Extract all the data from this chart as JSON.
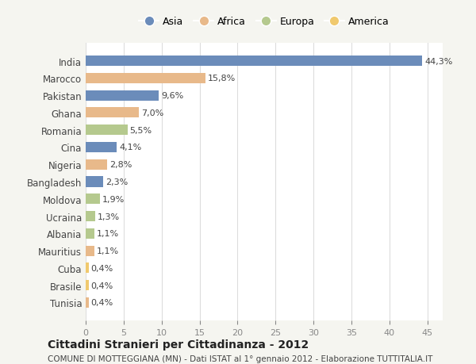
{
  "countries": [
    "India",
    "Marocco",
    "Pakistan",
    "Ghana",
    "Romania",
    "Cina",
    "Nigeria",
    "Bangladesh",
    "Moldova",
    "Ucraina",
    "Albania",
    "Mauritius",
    "Cuba",
    "Brasile",
    "Tunisia"
  ],
  "values": [
    44.3,
    15.8,
    9.6,
    7.0,
    5.5,
    4.1,
    2.8,
    2.3,
    1.9,
    1.3,
    1.1,
    1.1,
    0.4,
    0.4,
    0.4
  ],
  "labels": [
    "44,3%",
    "15,8%",
    "9,6%",
    "7,0%",
    "5,5%",
    "4,1%",
    "2,8%",
    "2,3%",
    "1,9%",
    "1,3%",
    "1,1%",
    "1,1%",
    "0,4%",
    "0,4%",
    "0,4%"
  ],
  "continents": [
    "Asia",
    "Africa",
    "Asia",
    "Africa",
    "Europa",
    "Asia",
    "Africa",
    "Asia",
    "Europa",
    "Europa",
    "Europa",
    "Africa",
    "America",
    "America",
    "Africa"
  ],
  "colors": {
    "Asia": "#6b8cba",
    "Africa": "#e8b98a",
    "Europa": "#b5c98e",
    "America": "#f0c96e"
  },
  "xlim": [
    0,
    47
  ],
  "xticks": [
    0,
    5,
    10,
    15,
    20,
    25,
    30,
    35,
    40,
    45
  ],
  "title": "Cittadini Stranieri per Cittadinanza - 2012",
  "subtitle": "COMUNE DI MOTTEGGIANA (MN) - Dati ISTAT al 1° gennaio 2012 - Elaborazione TUTTITALIA.IT",
  "bg_color": "#f5f5f0",
  "bar_bg_color": "#ffffff",
  "legend_order": [
    "Asia",
    "Africa",
    "Europa",
    "America"
  ]
}
